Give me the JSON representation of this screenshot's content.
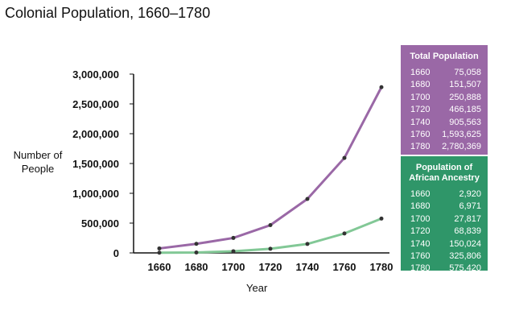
{
  "title": "Colonial Population, 1660–1780",
  "chart_data": {
    "type": "line",
    "title": "Colonial Population, 1660–1780",
    "xlabel": "Year",
    "ylabel": "Number of People",
    "x": [
      1660,
      1680,
      1700,
      1720,
      1740,
      1760,
      1780
    ],
    "x_tick_labels": [
      "1660",
      "1680",
      "1700",
      "1720",
      "1740",
      "1760",
      "1780"
    ],
    "ylim": [
      0,
      3000000
    ],
    "y_ticks": [
      0,
      500000,
      1000000,
      1500000,
      2000000,
      2500000,
      3000000
    ],
    "y_tick_labels": [
      "0",
      "500,000",
      "1,000,000",
      "1,500,000",
      "2,000,000",
      "2,500,000",
      "3,000,000"
    ],
    "grid": false,
    "series": [
      {
        "name": "Total Population",
        "color": "#9a68a6",
        "values": [
          75058,
          151507,
          250888,
          466185,
          905563,
          1593625,
          2780369
        ]
      },
      {
        "name": "Population of African Ancestry",
        "color": "#82c896",
        "values": [
          2920,
          6971,
          27817,
          68839,
          150024,
          325806,
          575420
        ]
      }
    ]
  },
  "tables": {
    "total": {
      "header": "Total Population",
      "rows": [
        [
          "1660",
          "75,058"
        ],
        [
          "1680",
          "151,507"
        ],
        [
          "1700",
          "250,888"
        ],
        [
          "1720",
          "466,185"
        ],
        [
          "1740",
          "905,563"
        ],
        [
          "1760",
          "1,593,625"
        ],
        [
          "1780",
          "2,780,369"
        ]
      ]
    },
    "african": {
      "header_line1": "Population of",
      "header_line2": "African Ancestry",
      "rows": [
        [
          "1660",
          "2,920"
        ],
        [
          "1680",
          "6,971"
        ],
        [
          "1700",
          "27,817"
        ],
        [
          "1720",
          "68,839"
        ],
        [
          "1740",
          "150,024"
        ],
        [
          "1760",
          "325,806"
        ],
        [
          "1780",
          "575,420"
        ]
      ]
    }
  }
}
